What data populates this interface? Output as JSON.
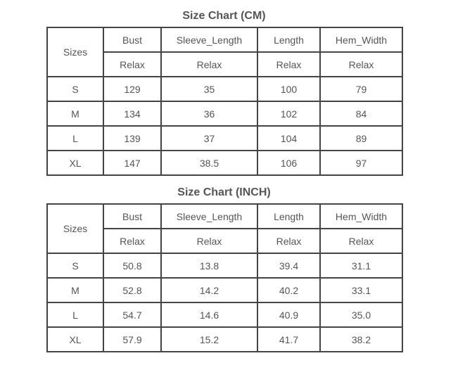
{
  "charts": [
    {
      "title": "Size Chart (CM)",
      "sizes_header": "Sizes",
      "columns": [
        "Bust",
        "Sleeve_Length",
        "Length",
        "Hem_Width"
      ],
      "fit": [
        "Relax",
        "Relax",
        "Relax",
        "Relax"
      ],
      "rows": [
        {
          "size": "S",
          "values": [
            "129",
            "35",
            "100",
            "79"
          ]
        },
        {
          "size": "M",
          "values": [
            "134",
            "36",
            "102",
            "84"
          ]
        },
        {
          "size": "L",
          "values": [
            "139",
            "37",
            "104",
            "89"
          ]
        },
        {
          "size": "XL",
          "values": [
            "147",
            "38.5",
            "106",
            "97"
          ]
        }
      ]
    },
    {
      "title": "Size Chart (INCH)",
      "sizes_header": "Sizes",
      "columns": [
        "Bust",
        "Sleeve_Length",
        "Length",
        "Hem_Width"
      ],
      "fit": [
        "Relax",
        "Relax",
        "Relax",
        "Relax"
      ],
      "rows": [
        {
          "size": "S",
          "values": [
            "50.8",
            "13.8",
            "39.4",
            "31.1"
          ]
        },
        {
          "size": "M",
          "values": [
            "52.8",
            "14.2",
            "40.2",
            "33.1"
          ]
        },
        {
          "size": "L",
          "values": [
            "54.7",
            "14.6",
            "40.9",
            "35.0"
          ]
        },
        {
          "size": "XL",
          "values": [
            "57.9",
            "15.2",
            "41.7",
            "38.2"
          ]
        }
      ]
    }
  ]
}
